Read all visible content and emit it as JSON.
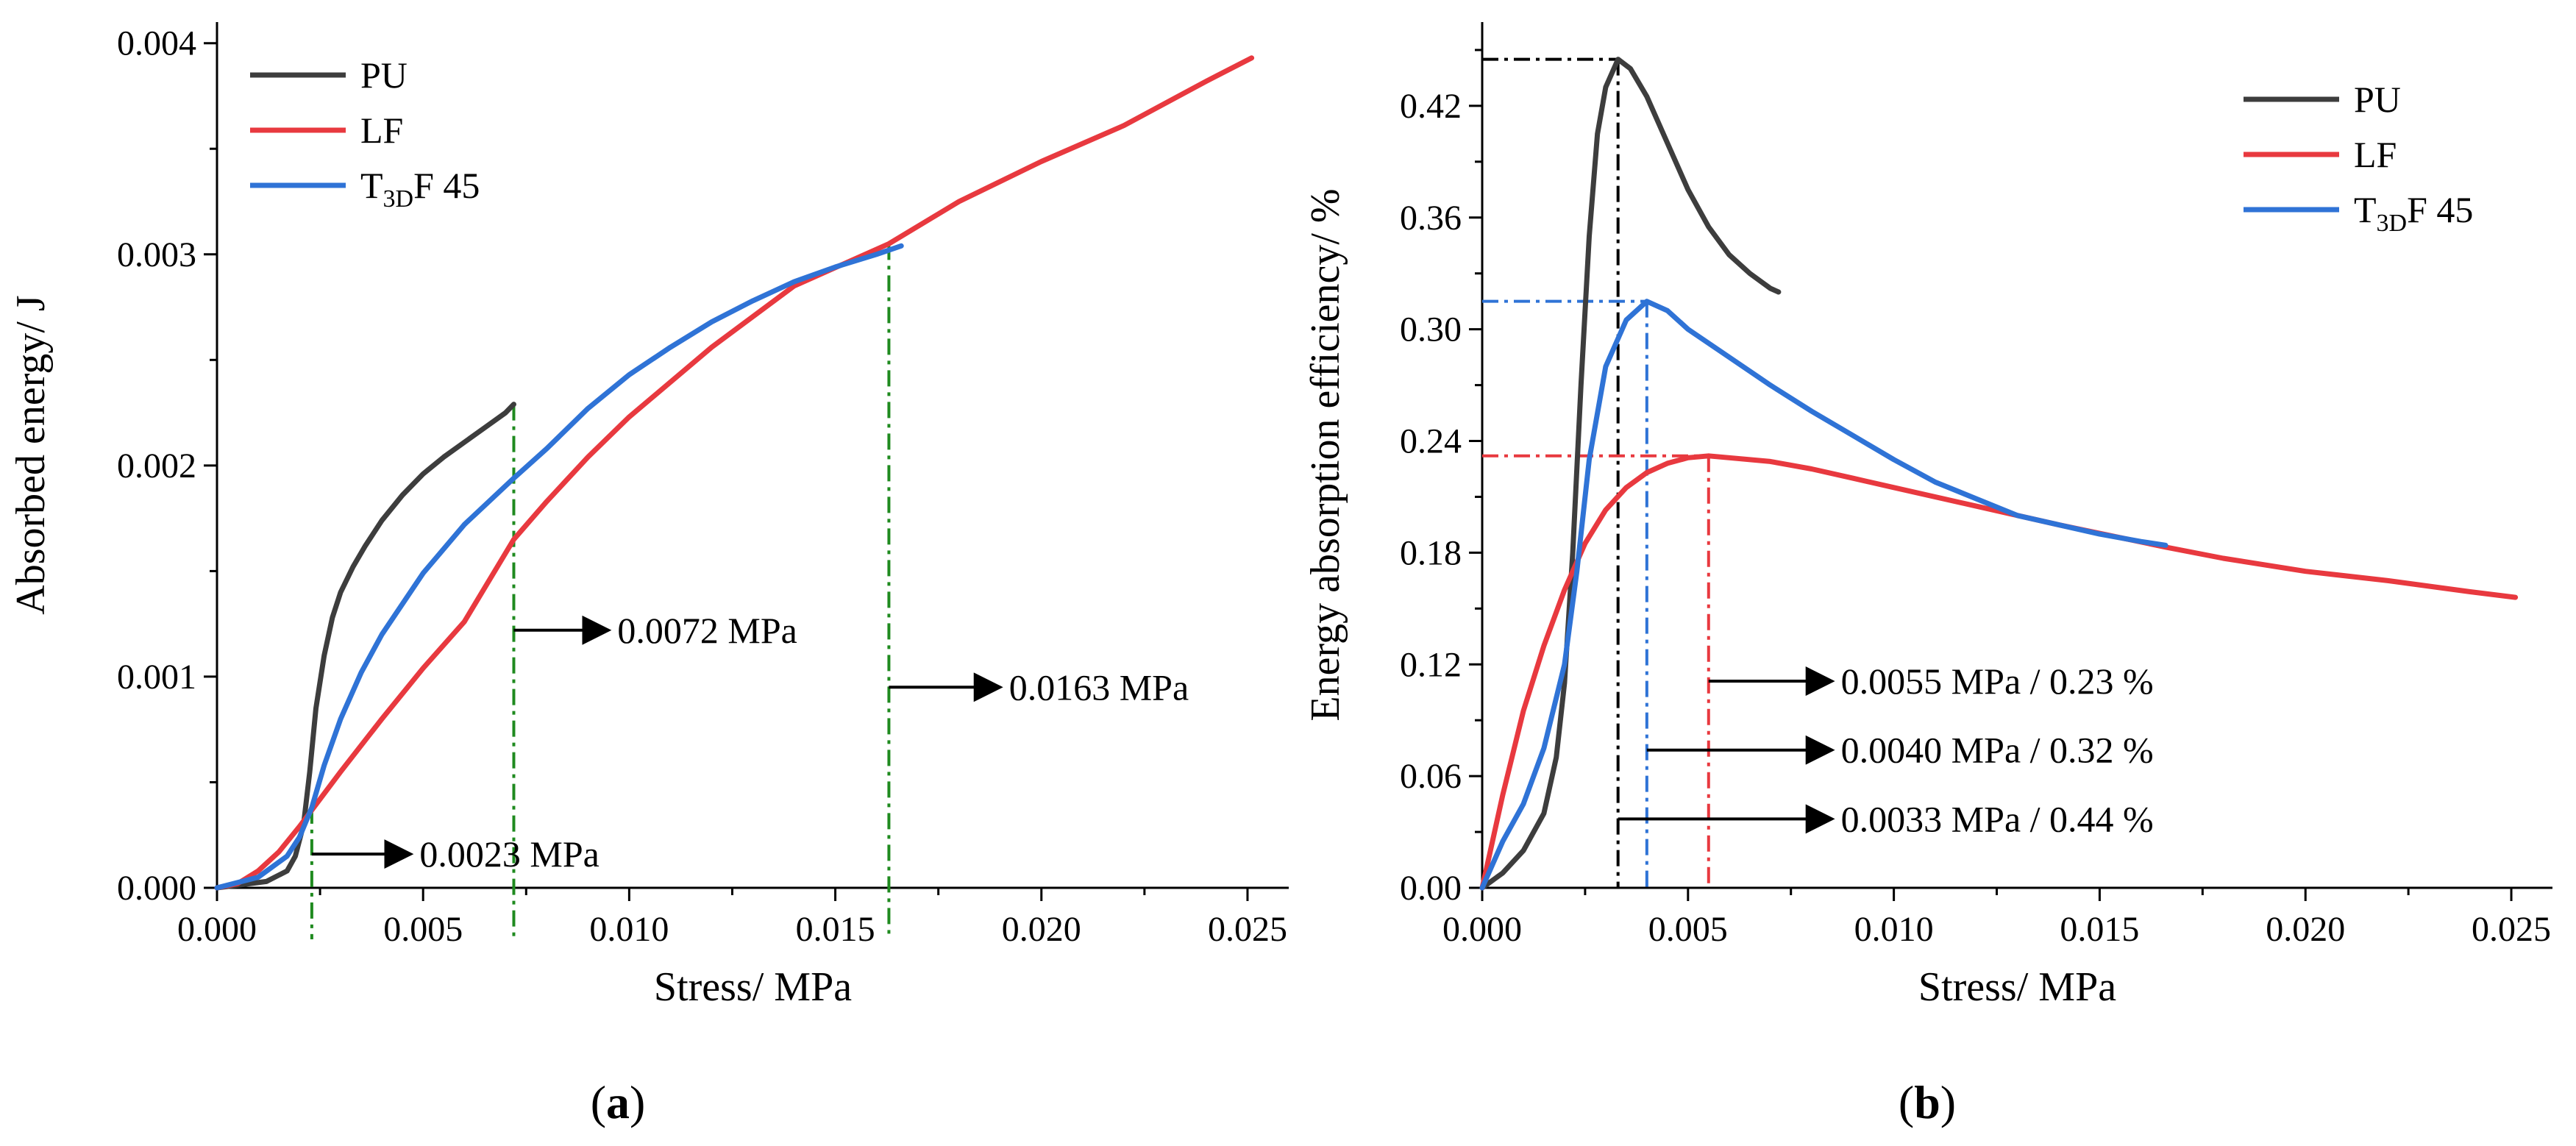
{
  "chart_data": [
    {
      "type": "line",
      "panel": "a",
      "panel_label_open": "(",
      "panel_label_letter": "a",
      "panel_label_close": ")",
      "xlabel": "Stress/ MPa",
      "ylabel": "Absorbed energy/ J",
      "xlim": [
        0,
        0.026
      ],
      "ylim": [
        0,
        0.0041
      ],
      "xticks": [
        "0.000",
        "0.005",
        "0.010",
        "0.015",
        "0.020",
        "0.025"
      ],
      "yticks": [
        "0.000",
        "0.001",
        "0.002",
        "0.003",
        "0.004"
      ],
      "legend_position": "top-left",
      "series": [
        {
          "name": "PU",
          "sub": "",
          "suffix": "",
          "color": "#3d3d3d",
          "x": [
            0,
            0.0012,
            0.0017,
            0.0019,
            0.0021,
            0.00225,
            0.0024,
            0.0026,
            0.0028,
            0.003,
            0.0033,
            0.0036,
            0.004,
            0.0045,
            0.005,
            0.0055,
            0.006,
            0.0065,
            0.007,
            0.0072
          ],
          "y": [
            0,
            3e-05,
            8e-05,
            0.00015,
            0.0003,
            0.00055,
            0.00085,
            0.0011,
            0.00128,
            0.0014,
            0.00152,
            0.00162,
            0.00174,
            0.00186,
            0.00196,
            0.00204,
            0.00211,
            0.00218,
            0.00225,
            0.00229
          ]
        },
        {
          "name": "LF",
          "sub": "",
          "suffix": "",
          "color": "#e8393f",
          "x": [
            0,
            0.0005,
            0.001,
            0.0015,
            0.002,
            0.0025,
            0.003,
            0.004,
            0.005,
            0.006,
            0.0072,
            0.008,
            0.009,
            0.01,
            0.012,
            0.014,
            0.0163,
            0.018,
            0.02,
            0.022,
            0.024,
            0.0251
          ],
          "y": [
            0,
            2e-05,
            8e-05,
            0.00017,
            0.00029,
            0.00042,
            0.00055,
            0.0008,
            0.00104,
            0.00126,
            0.00165,
            0.00183,
            0.00204,
            0.00223,
            0.00256,
            0.00285,
            0.00305,
            0.00325,
            0.00344,
            0.00361,
            0.00382,
            0.00393
          ]
        },
        {
          "name": "T",
          "sub": "3D",
          "suffix": "F 45",
          "color": "#2f73d6",
          "x": [
            0,
            0.001,
            0.0017,
            0.002,
            0.0023,
            0.0026,
            0.003,
            0.0035,
            0.004,
            0.005,
            0.006,
            0.0072,
            0.008,
            0.009,
            0.01,
            0.011,
            0.012,
            0.013,
            0.014,
            0.015,
            0.016,
            0.0166
          ],
          "y": [
            0,
            5e-05,
            0.00015,
            0.00024,
            0.00038,
            0.00058,
            0.0008,
            0.00102,
            0.0012,
            0.00149,
            0.00172,
            0.00194,
            0.00208,
            0.00227,
            0.00243,
            0.00256,
            0.00268,
            0.00278,
            0.00287,
            0.00294,
            0.003,
            0.00304
          ]
        }
      ],
      "markers": [
        {
          "x": 0.0023,
          "y_top": 0.00038,
          "color": "#1f8a1f"
        },
        {
          "x": 0.0072,
          "y_top": 0.00229,
          "color": "#1f8a1f"
        },
        {
          "x": 0.0163,
          "y_top": 0.00305,
          "color": "#1f8a1f"
        }
      ],
      "annotations": [
        {
          "text": "0.0023 MPa",
          "x_from": 0.0023,
          "x_to": 0.0047,
          "y": 0.00016
        },
        {
          "text": "0.0072 MPa",
          "x_from": 0.0072,
          "x_to": 0.0095,
          "y": 0.00122
        },
        {
          "text": "0.0163 MPa",
          "x_from": 0.0163,
          "x_to": 0.019,
          "y": 0.00095
        }
      ]
    },
    {
      "type": "line",
      "panel": "b",
      "panel_label_open": "(",
      "panel_label_letter": "b",
      "panel_label_close": ")",
      "xlabel": "Stress/ MPa",
      "ylabel": "Energy absorption efficiency/ %",
      "xlim": [
        0,
        0.026
      ],
      "ylim": [
        0,
        0.465
      ],
      "xticks": [
        "0.000",
        "0.005",
        "0.010",
        "0.015",
        "0.020",
        "0.025"
      ],
      "yticks": [
        "0.00",
        "0.06",
        "0.12",
        "0.18",
        "0.24",
        "0.30",
        "0.36",
        "0.42"
      ],
      "legend_position": "top-right",
      "series": [
        {
          "name": "PU",
          "sub": "",
          "suffix": "",
          "color": "#3d3d3d",
          "x": [
            0,
            0.0005,
            0.001,
            0.0015,
            0.0018,
            0.002,
            0.0022,
            0.0024,
            0.0026,
            0.0028,
            0.003,
            0.0033,
            0.0036,
            0.004,
            0.0045,
            0.005,
            0.0055,
            0.006,
            0.0065,
            0.007,
            0.0072
          ],
          "y": [
            0,
            0.008,
            0.02,
            0.04,
            0.07,
            0.11,
            0.18,
            0.27,
            0.35,
            0.405,
            0.43,
            0.445,
            0.44,
            0.425,
            0.4,
            0.375,
            0.355,
            0.34,
            0.33,
            0.322,
            0.32
          ]
        },
        {
          "name": "LF",
          "sub": "",
          "suffix": "",
          "color": "#e8393f",
          "x": [
            0,
            0.0005,
            0.001,
            0.0015,
            0.002,
            0.0025,
            0.003,
            0.0035,
            0.004,
            0.0045,
            0.005,
            0.0055,
            0.006,
            0.007,
            0.008,
            0.009,
            0.01,
            0.012,
            0.014,
            0.0166,
            0.018,
            0.02,
            0.022,
            0.024,
            0.0251
          ],
          "y": [
            0,
            0.05,
            0.095,
            0.13,
            0.16,
            0.185,
            0.203,
            0.215,
            0.223,
            0.228,
            0.231,
            0.232,
            0.231,
            0.229,
            0.225,
            0.22,
            0.215,
            0.205,
            0.195,
            0.183,
            0.177,
            0.17,
            0.165,
            0.159,
            0.156
          ]
        },
        {
          "name": "T",
          "sub": "3D",
          "suffix": "F 45",
          "color": "#2f73d6",
          "x": [
            0,
            0.0005,
            0.001,
            0.0015,
            0.002,
            0.0023,
            0.0026,
            0.003,
            0.0035,
            0.004,
            0.0045,
            0.005,
            0.006,
            0.007,
            0.008,
            0.009,
            0.01,
            0.011,
            0.012,
            0.013,
            0.014,
            0.015,
            0.016,
            0.0166
          ],
          "y": [
            0,
            0.025,
            0.045,
            0.075,
            0.12,
            0.17,
            0.23,
            0.28,
            0.305,
            0.315,
            0.31,
            0.3,
            0.285,
            0.27,
            0.256,
            0.243,
            0.23,
            0.218,
            0.209,
            0.2,
            0.195,
            0.19,
            0.186,
            0.184
          ]
        }
      ],
      "markers": [
        {
          "x": 0.0033,
          "y": 0.445,
          "color": "#000000"
        },
        {
          "x": 0.004,
          "y": 0.315,
          "color": "#2f73d6"
        },
        {
          "x": 0.0055,
          "y": 0.232,
          "color": "#e8393f"
        }
      ],
      "annotations": [
        {
          "text": "0.0055 MPa / 0.23 %",
          "x_from": 0.0055,
          "x_to": 0.0085,
          "y": 0.111
        },
        {
          "text": "0.0040 MPa / 0.32 %",
          "x_from": 0.004,
          "x_to": 0.0085,
          "y": 0.074
        },
        {
          "text": "0.0033 MPa / 0.44 %",
          "x_from": 0.0033,
          "x_to": 0.0085,
          "y": 0.037
        }
      ]
    }
  ]
}
